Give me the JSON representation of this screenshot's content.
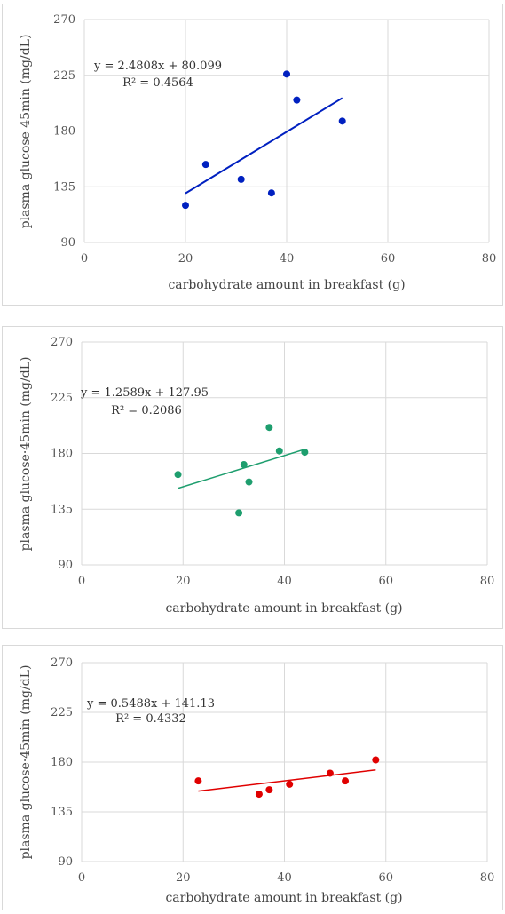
{
  "chart_data": [
    {
      "type": "scatter",
      "xlabel": "carbohydrate amount in breakfast (g)",
      "ylabel": "plasma glucose 45min (mg/dL)",
      "xlim": [
        0,
        80
      ],
      "ylim": [
        90,
        270
      ],
      "xticks": [
        0,
        20,
        40,
        60,
        80
      ],
      "yticks": [
        90,
        135,
        180,
        225,
        270
      ],
      "grid": true,
      "color": "#0020c0",
      "points": [
        {
          "x": 20,
          "y": 120
        },
        {
          "x": 24,
          "y": 153
        },
        {
          "x": 31,
          "y": 141
        },
        {
          "x": 37,
          "y": 130
        },
        {
          "x": 40,
          "y": 226
        },
        {
          "x": 42,
          "y": 205
        },
        {
          "x": 51,
          "y": 188
        }
      ],
      "trendline": {
        "slope": 2.4808,
        "intercept": 80.099,
        "x_range": [
          20,
          51
        ]
      },
      "equation": "y = 2.4808x + 80.099",
      "r2": "R² = 0.4564"
    },
    {
      "type": "scatter",
      "xlabel": "carbohydrate amount in breakfast (g)",
      "ylabel": "plasma glucose·45min (mg/dL)",
      "xlim": [
        0,
        80
      ],
      "ylim": [
        90,
        270
      ],
      "xticks": [
        0,
        20,
        40,
        60,
        80
      ],
      "yticks": [
        90,
        135,
        180,
        225,
        270
      ],
      "grid": true,
      "color": "#1e9e6e",
      "points": [
        {
          "x": 19,
          "y": 163
        },
        {
          "x": 31,
          "y": 132
        },
        {
          "x": 32,
          "y": 171
        },
        {
          "x": 33,
          "y": 157
        },
        {
          "x": 37,
          "y": 201
        },
        {
          "x": 39,
          "y": 182
        },
        {
          "x": 44,
          "y": 181
        }
      ],
      "trendline": {
        "slope": 1.2589,
        "intercept": 127.95,
        "x_range": [
          19,
          44
        ]
      },
      "equation": "y = 1.2589x + 127.95",
      "r2": "R² = 0.2086"
    },
    {
      "type": "scatter",
      "xlabel": "carbohydrate amount in breakfast (g)",
      "ylabel": "plasma glucose·45min (mg/dL)",
      "xlim": [
        0,
        80
      ],
      "ylim": [
        90,
        270
      ],
      "xticks": [
        0,
        20,
        40,
        60,
        80
      ],
      "yticks": [
        90,
        135,
        180,
        225,
        270
      ],
      "grid": true,
      "color": "#e00000",
      "points": [
        {
          "x": 23,
          "y": 163
        },
        {
          "x": 35,
          "y": 151
        },
        {
          "x": 37,
          "y": 155
        },
        {
          "x": 41,
          "y": 160
        },
        {
          "x": 49,
          "y": 170
        },
        {
          "x": 52,
          "y": 163
        },
        {
          "x": 58,
          "y": 182
        }
      ],
      "trendline": {
        "slope": 0.5488,
        "intercept": 141.13,
        "x_range": [
          23,
          58
        ]
      },
      "equation": "y = 0.5488x + 141.13",
      "r2": "R² = 0.4332"
    }
  ]
}
